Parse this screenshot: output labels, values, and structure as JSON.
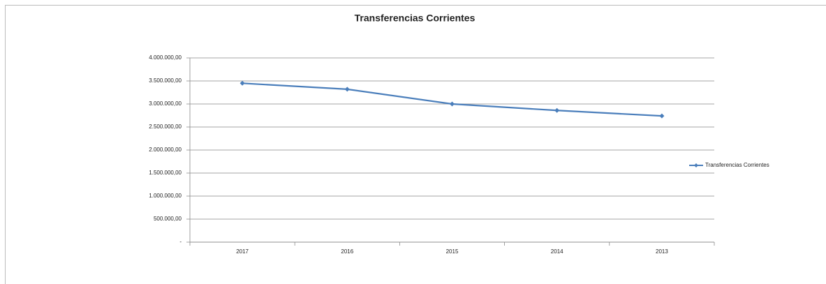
{
  "chart_data": {
    "type": "line",
    "title": "Transferencias Corrientes",
    "categories": [
      "2017",
      "2016",
      "2015",
      "2014",
      "2013"
    ],
    "series": [
      {
        "name": "Transferencias Corrientes",
        "color": "#4a7ebb",
        "values": [
          3450000,
          3320000,
          3000000,
          2860000,
          2740000
        ]
      }
    ],
    "ylim": [
      0,
      4000000
    ],
    "yticks": [
      {
        "value": 0,
        "label": "-"
      },
      {
        "value": 500000,
        "label": "500.000,00"
      },
      {
        "value": 1000000,
        "label": "1.000.000,00"
      },
      {
        "value": 1500000,
        "label": "1.500.000,00"
      },
      {
        "value": 2000000,
        "label": "2.000.000,00"
      },
      {
        "value": 2500000,
        "label": "2.500.000,00"
      },
      {
        "value": 3000000,
        "label": "3.000.000,00"
      },
      {
        "value": 3500000,
        "label": "3.500.000,00"
      },
      {
        "value": 4000000,
        "label": "4.000.000,00"
      }
    ],
    "grid": true,
    "legend": "right"
  }
}
